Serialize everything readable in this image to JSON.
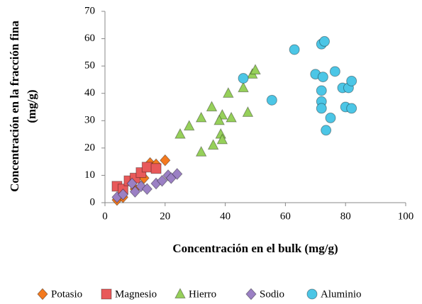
{
  "chart_data": {
    "type": "scatter",
    "xlabel": "Concentración en el bulk (mg/g)",
    "ylabel": [
      "Concentración en la fracción fina",
      "(mg/g)"
    ],
    "xlim": [
      0,
      100
    ],
    "xticks": [
      0,
      20,
      40,
      60,
      80,
      100
    ],
    "ylim": [
      0,
      70
    ],
    "yticks": [
      0,
      10,
      20,
      30,
      40,
      50,
      60,
      70
    ],
    "legend": "bottom",
    "series": [
      {
        "name": "Potasio",
        "color": "#f47a1f",
        "marker": "diamond",
        "x": [
          4,
          6,
          10,
          13,
          15,
          17,
          20
        ],
        "values": [
          1,
          2,
          5,
          9,
          14.5,
          14,
          15.5
        ]
      },
      {
        "name": "Magnesio",
        "color": "#e8595a",
        "marker": "square",
        "x": [
          4,
          6,
          8,
          10,
          12,
          14,
          17
        ],
        "values": [
          6,
          5,
          8,
          9,
          11,
          13,
          12.5
        ]
      },
      {
        "name": "Hierro",
        "color": "#96d05a",
        "marker": "triangle",
        "x": [
          25,
          28,
          32,
          35.5,
          39,
          41,
          38,
          42,
          46,
          49,
          50,
          47.5,
          38.5,
          39,
          36,
          32
        ],
        "values": [
          25,
          28,
          31,
          35,
          32,
          40,
          30,
          31,
          42,
          47,
          48.5,
          33,
          25,
          23,
          21,
          18.5
        ]
      },
      {
        "name": "Sodio",
        "color": "#9b80c4",
        "marker": "diamond",
        "x": [
          4,
          6,
          9,
          10,
          12,
          14,
          17,
          19,
          21,
          22,
          24
        ],
        "values": [
          2,
          3,
          7,
          4,
          6,
          5,
          7,
          8,
          10,
          9,
          10.5
        ]
      },
      {
        "name": "Aluminio",
        "color": "#4cc6e6",
        "marker": "circle",
        "x": [
          46,
          55.5,
          63,
          72,
          73,
          70,
          72.5,
          76.5,
          72,
          72,
          72,
          73.5,
          75,
          79,
          81,
          82,
          80,
          82
        ],
        "values": [
          45.5,
          37.5,
          56,
          58,
          59,
          47,
          46,
          48,
          41,
          37,
          34.5,
          26.5,
          31,
          42,
          42,
          44.5,
          35,
          34.5
        ]
      }
    ]
  }
}
